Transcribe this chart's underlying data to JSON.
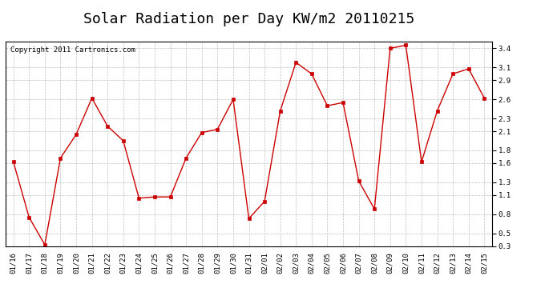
{
  "title": "Solar Radiation per Day KW/m2 20110215",
  "copyright": "Copyright 2011 Cartronics.com",
  "x_labels": [
    "01/16",
    "01/17",
    "01/18",
    "01/19",
    "01/20",
    "01/21",
    "01/22",
    "01/23",
    "01/24",
    "01/25",
    "01/26",
    "01/27",
    "01/28",
    "01/29",
    "01/30",
    "01/31",
    "02/01",
    "02/02",
    "02/03",
    "02/04",
    "02/05",
    "02/06",
    "02/07",
    "02/08",
    "02/09",
    "02/10",
    "02/11",
    "02/12",
    "02/13",
    "02/14",
    "02/15"
  ],
  "y_values": [
    1.62,
    0.75,
    0.32,
    1.68,
    2.05,
    2.62,
    2.18,
    1.95,
    1.05,
    1.07,
    1.07,
    1.68,
    2.08,
    2.13,
    2.6,
    0.73,
    1.0,
    2.42,
    3.18,
    3.0,
    2.5,
    2.55,
    1.32,
    0.88,
    3.4,
    3.45,
    1.62,
    2.42,
    3.0,
    3.08,
    2.62
  ],
  "line_color": "#cc0000",
  "marker_color": "#cc0000",
  "bg_color": "#ffffff",
  "grid_color": "#c0c0c0",
  "ylim_min": 0.3,
  "ylim_max": 3.5,
  "yticks": [
    0.3,
    0.5,
    0.8,
    1.1,
    1.3,
    1.6,
    1.8,
    2.1,
    2.3,
    2.6,
    2.9,
    3.1,
    3.4
  ],
  "title_fontsize": 13,
  "copyright_fontsize": 6.5,
  "tick_fontsize": 6.5
}
